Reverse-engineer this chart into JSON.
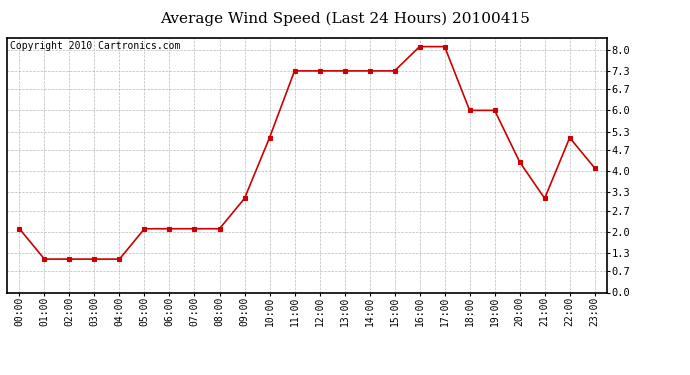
{
  "title": "Average Wind Speed (Last 24 Hours) 20100415",
  "copyright_text": "Copyright 2010 Cartronics.com",
  "x_labels": [
    "00:00",
    "01:00",
    "02:00",
    "03:00",
    "04:00",
    "05:00",
    "06:00",
    "07:00",
    "08:00",
    "09:00",
    "10:00",
    "11:00",
    "12:00",
    "13:00",
    "14:00",
    "15:00",
    "16:00",
    "17:00",
    "18:00",
    "19:00",
    "20:00",
    "21:00",
    "22:00",
    "23:00"
  ],
  "y_values": [
    2.1,
    1.1,
    1.1,
    1.1,
    1.1,
    2.1,
    2.1,
    2.1,
    2.1,
    3.1,
    5.1,
    7.3,
    7.3,
    7.3,
    7.3,
    7.3,
    8.1,
    8.1,
    6.0,
    6.0,
    4.3,
    3.1,
    5.1,
    4.1
  ],
  "yticks": [
    0.0,
    0.7,
    1.3,
    2.0,
    2.7,
    3.3,
    4.0,
    4.7,
    5.3,
    6.0,
    6.7,
    7.3,
    8.0
  ],
  "ylim": [
    0.0,
    8.4
  ],
  "line_color": "#cc0000",
  "marker_color": "#cc0000",
  "bg_color": "#ffffff",
  "plot_bg_color": "#ffffff",
  "grid_color": "#bbbbbb",
  "title_fontsize": 11,
  "copyright_fontsize": 7,
  "tick_fontsize": 7,
  "ytick_fontsize": 7.5
}
